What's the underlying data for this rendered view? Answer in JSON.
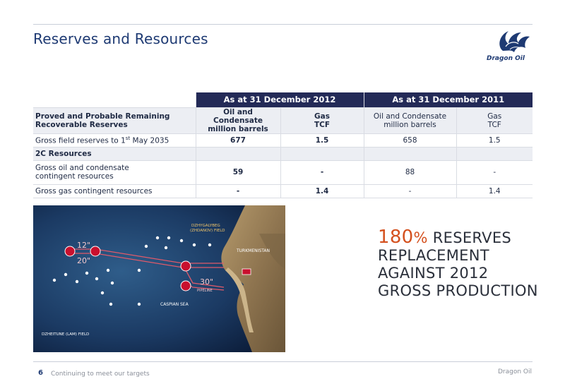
{
  "slide": {
    "title": "Reserves and Resources",
    "page_number": "6",
    "footer_left": "Continuing to meet our targets",
    "footer_right": "Dragon Oil"
  },
  "logo": {
    "name": "Dragon Oil"
  },
  "table": {
    "period_2012": "As at 31 December 2012",
    "period_2011": "As at 31 December 2011",
    "header_label_line1": "Proved and Probable Remaining",
    "header_label_line2": "Recoverable Reserves",
    "col_oil_line1": "Oil and Condensate",
    "col_oil_line2": "million barrels",
    "col_gas_line1": "Gas",
    "col_gas_line2": "TCF",
    "rows": [
      {
        "label_pre": "Gross field reserves to 1",
        "label_sup": "st",
        "label_post": " May 2035",
        "oil_2012": "677",
        "gas_2012": "1.5",
        "oil_2011": "658",
        "gas_2011": "1.5"
      },
      {
        "label": "2C Resources"
      },
      {
        "label_line1": "Gross oil and condensate",
        "label_line2": "contingent resources",
        "oil_2012": "59",
        "gas_2012": "-",
        "oil_2011": "88",
        "gas_2011": "-"
      },
      {
        "label": "Gross gas contingent resources",
        "oil_2012": "-",
        "gas_2012": "1.4",
        "oil_2011": "-",
        "gas_2011": "1.4"
      }
    ]
  },
  "map": {
    "field_north": "DZHYGALYBEG",
    "field_north_2": "(ZHDANOV) FIELD",
    "country": "TURKMENISTAN",
    "sea": "CASPIAN SEA",
    "pipe_12": "12\"",
    "pipe_20": "20\"",
    "pipe_30": "30\"",
    "pipeline_label": "PIPELINE",
    "field_south": "DZHEITUNE (LAM) FIELD"
  },
  "headline": {
    "number": "180",
    "pct": "%",
    "line1_rest": " RESERVES",
    "line2": "REPLACEMENT",
    "line3": "AGAINST 2012",
    "line4": "GROSS PRODUCTION"
  },
  "colors": {
    "navy": "#232a57",
    "title_blue": "#1e3a73",
    "accent_orange": "#d4511f"
  }
}
